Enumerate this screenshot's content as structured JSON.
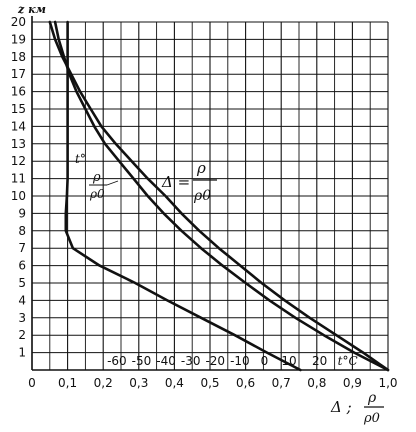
{
  "chart_data": {
    "type": "line",
    "title": "",
    "ylabel": "z км",
    "xlabel_delta": "Δ ;",
    "xlabel_frac_num": "ρ",
    "xlabel_frac_den": "ρ0",
    "xlim": [
      0,
      1.0
    ],
    "ylim": [
      0,
      20
    ],
    "grid": true,
    "x_ticks": [
      {
        "v": 0.0,
        "label": "0"
      },
      {
        "v": 0.1,
        "label": "0,1"
      },
      {
        "v": 0.2,
        "label": "0,2"
      },
      {
        "v": 0.3,
        "label": "0,3"
      },
      {
        "v": 0.4,
        "label": "0,4"
      },
      {
        "v": 0.5,
        "label": "0,5"
      },
      {
        "v": 0.6,
        "label": "0,6"
      },
      {
        "v": 0.7,
        "label": "0,7"
      },
      {
        "v": 0.8,
        "label": "0,8"
      },
      {
        "v": 0.9,
        "label": "0,9"
      },
      {
        "v": 1.0,
        "label": "1,0"
      }
    ],
    "y_ticks": [
      1,
      2,
      3,
      4,
      5,
      6,
      7,
      8,
      9,
      10,
      11,
      12,
      13,
      14,
      15,
      16,
      17,
      18,
      19,
      20
    ],
    "temp_ticks": [
      {
        "v": -60,
        "label": "-60"
      },
      {
        "v": -50,
        "label": "-50"
      },
      {
        "v": -40,
        "label": "-40"
      },
      {
        "v": -30,
        "label": "-30"
      },
      {
        "v": -20,
        "label": "-20"
      },
      {
        "v": -10,
        "label": "-10"
      },
      {
        "v": 0,
        "label": "0"
      },
      {
        "v": 10,
        "label": "10"
      },
      {
        "v": 20,
        "label": "20"
      }
    ],
    "temp_unit": "t°C",
    "temp_axis_x_per_degree": 0.00691,
    "temp_axis_zero_x": 0.653,
    "series": [
      {
        "label_text": "t°",
        "x": [
          0.754,
          0.66,
          0.57,
          0.475,
          0.38,
          0.29,
          0.19,
          0.115,
          0.095,
          0.095,
          0.098,
          0.1,
          0.1,
          0.1,
          0.1,
          0.1,
          0.1,
          0.1,
          0.1,
          0.1,
          0.1
        ],
        "y": [
          0,
          1,
          2,
          3,
          4,
          5,
          6,
          7,
          8,
          9,
          10,
          11,
          12,
          13,
          14,
          15,
          16,
          17,
          18,
          19,
          20
        ]
      },
      {
        "label_text": "ρ/ρ0",
        "x": [
          1.0,
          0.905,
          0.82,
          0.74,
          0.667,
          0.6,
          0.535,
          0.475,
          0.42,
          0.37,
          0.325,
          0.285,
          0.245,
          0.205,
          0.175,
          0.15,
          0.125,
          0.105,
          0.09,
          0.075,
          0.065
        ],
        "y": [
          0,
          1,
          2,
          3,
          4,
          5,
          6,
          7,
          8,
          9,
          10,
          11,
          12,
          13,
          14,
          15,
          16,
          17,
          18,
          19,
          20
        ]
      },
      {
        "label_text": "Δ",
        "x": [
          1.0,
          0.93,
          0.855,
          0.78,
          0.71,
          0.645,
          0.585,
          0.525,
          0.47,
          0.42,
          0.375,
          0.325,
          0.28,
          0.235,
          0.195,
          0.165,
          0.135,
          0.11,
          0.085,
          0.065,
          0.05
        ],
        "y": [
          0,
          1,
          2,
          3,
          4,
          5,
          6,
          7,
          8,
          9,
          10,
          11,
          12,
          13,
          14,
          15,
          16,
          17,
          18,
          19,
          20
        ]
      }
    ],
    "annotation_delta": "Δ =",
    "annotation_rho_num": "ρ",
    "annotation_rho_den": "ρ0"
  }
}
